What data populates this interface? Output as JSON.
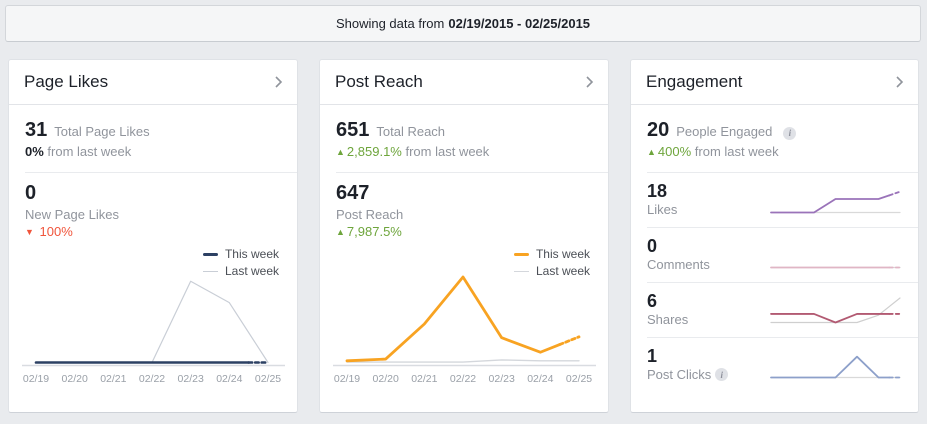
{
  "topbar": {
    "prefix": "Showing data from",
    "date_range": "02/19/2015 - 02/25/2015"
  },
  "glyphs": {
    "up_arrow": "▲",
    "down_arrow": "▼"
  },
  "colors": {
    "page_bg": "#e9ebee",
    "panel_bg": "#ffffff",
    "green": "#6ea53c",
    "red": "#f0553c",
    "gray_text": "#90949c",
    "dark_text": "#1d2129",
    "this_week_navy": "#2c4063",
    "this_week_orange": "#f8a322",
    "last_week_gray": "#c9ced6",
    "likes_purple": "#9a73b9",
    "comments_pink": "#e0b6c5",
    "shares_maroon": "#b25a72",
    "post_clicks_blue": "#8da0ca",
    "sparkline_gray": "#d9d9d9"
  },
  "panels": {
    "page_likes": {
      "title": "Page Likes",
      "stat1": {
        "value": "31",
        "label": "Total Page Likes",
        "change": "0%",
        "change_suffix": "from last week"
      },
      "stat2": {
        "value": "0",
        "label": "New Page Likes",
        "arrow": "▼",
        "change": "100%"
      },
      "legend": {
        "this_week": "This week",
        "last_week": "Last week"
      }
    },
    "post_reach": {
      "title": "Post Reach",
      "stat1": {
        "value": "651",
        "label": "Total Reach",
        "arrow": "▲",
        "change": "2,859.1%",
        "change_suffix": "from last week"
      },
      "stat2": {
        "value": "647",
        "label": "Post Reach",
        "arrow": "▲",
        "change": "7,987.5%"
      },
      "legend": {
        "this_week": "This week",
        "last_week": "Last week"
      }
    },
    "engagement": {
      "title": "Engagement",
      "stat1": {
        "value": "20",
        "label": "People Engaged",
        "arrow": "▲",
        "change": "400%",
        "change_suffix": "from last week"
      },
      "rows": [
        {
          "value": "18",
          "label": "Likes"
        },
        {
          "value": "0",
          "label": "Comments"
        },
        {
          "value": "6",
          "label": "Shares"
        },
        {
          "value": "1",
          "label": "Post Clicks"
        }
      ]
    }
  },
  "chart_data": [
    {
      "id": "page_likes_chart",
      "type": "line",
      "title": "Page Likes — This week vs Last week",
      "x": [
        "02/19",
        "02/20",
        "02/21",
        "02/22",
        "02/23",
        "02/24",
        "02/25"
      ],
      "y_unit": "relative 0-1 (no y-axis shown in UI)",
      "ylim": [
        0,
        1
      ],
      "grid": false,
      "legend_position": "top-right",
      "series": [
        {
          "name": "This week",
          "color": "#2c4063",
          "width": 2.6,
          "dash_tail": true,
          "values": [
            0,
            0,
            0,
            0,
            0,
            0,
            0
          ]
        },
        {
          "name": "Last week",
          "color": "#c9ced6",
          "width": 1.2,
          "values": [
            0,
            0,
            0,
            0,
            0.95,
            0.7,
            0
          ]
        }
      ]
    },
    {
      "id": "post_reach_chart",
      "type": "line",
      "title": "Post Reach — This week vs Last week",
      "x": [
        "02/19",
        "02/20",
        "02/21",
        "02/22",
        "02/23",
        "02/24",
        "02/25"
      ],
      "y_unit": "relative 0-1 (no y-axis shown in UI)",
      "ylim": [
        0,
        1
      ],
      "grid": false,
      "legend_position": "top-right",
      "series": [
        {
          "name": "This week",
          "color": "#f8a322",
          "width": 2.8,
          "dash_tail": true,
          "values": [
            0.02,
            0.04,
            0.45,
            1,
            0.29,
            0.12,
            0.3
          ]
        },
        {
          "name": "Last week",
          "color": "#d4d7dc",
          "width": 1.4,
          "values": [
            0.005,
            0.005,
            0.005,
            0.005,
            0.03,
            0.02,
            0.02
          ]
        }
      ]
    },
    {
      "id": "engagement_sparklines",
      "type": "sparklines",
      "x": [
        "02/19",
        "02/20",
        "02/21",
        "02/22",
        "02/23",
        "02/24",
        "02/25"
      ],
      "y_unit": "relative 0-1 (no axes shown in UI)",
      "items": [
        {
          "name": "Likes",
          "value": 18,
          "series": [
            {
              "name": "This week",
              "color": "#9a73b9",
              "width": 1.8,
              "dash_tail": true,
              "values": [
                0,
                0,
                0,
                0.55,
                0.55,
                0.55,
                0.85
              ]
            },
            {
              "name": "Last week",
              "color": "#d9d9d9",
              "width": 1.2,
              "values": [
                0,
                0,
                0,
                0,
                0,
                0,
                0
              ]
            }
          ]
        },
        {
          "name": "Comments",
          "value": 0,
          "series": [
            {
              "name": "This week",
              "color": "#e0b6c5",
              "width": 1.8,
              "dash_tail": true,
              "values": [
                0,
                0,
                0,
                0,
                0,
                0,
                0
              ]
            },
            {
              "name": "Last week",
              "color": "#d9d9d9",
              "width": 1.2,
              "values": [
                0,
                0,
                0,
                0,
                0,
                0,
                0
              ]
            }
          ]
        },
        {
          "name": "Shares",
          "value": 6,
          "series": [
            {
              "name": "This week",
              "color": "#b25a72",
              "width": 1.8,
              "dash_tail": true,
              "values": [
                0.35,
                0.35,
                0.35,
                0,
                0.35,
                0.35,
                0.35
              ]
            },
            {
              "name": "Last week",
              "color": "#cfcfcf",
              "width": 1.2,
              "values": [
                0,
                0,
                0,
                0,
                0,
                0.3,
                1
              ]
            }
          ]
        },
        {
          "name": "Post Clicks",
          "value": 1,
          "series": [
            {
              "name": "This week",
              "color": "#8da0ca",
              "width": 1.8,
              "dash_tail": true,
              "values": [
                0,
                0,
                0,
                0,
                0.85,
                0,
                0
              ]
            },
            {
              "name": "Last week",
              "color": "#d9d9d9",
              "width": 1.2,
              "values": [
                0,
                0,
                0,
                0,
                0,
                0,
                0
              ]
            }
          ]
        }
      ]
    }
  ]
}
